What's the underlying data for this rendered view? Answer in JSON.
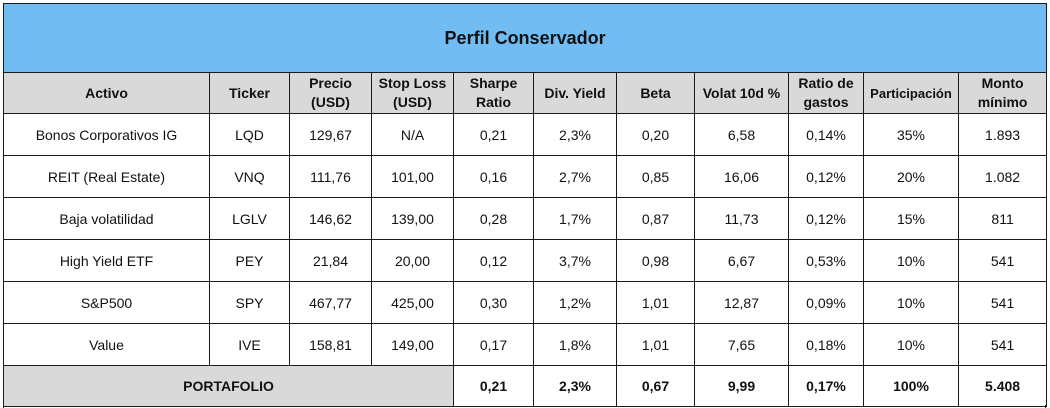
{
  "title": "Perfil Conservador",
  "headers": [
    "Activo",
    "Ticker",
    "Precio (USD)",
    "Stop Loss (USD)",
    "Sharpe Ratio",
    "Div. Yield",
    "Beta",
    "Volat 10d %",
    "Ratio de gastos",
    "Participación",
    "Monto mínimo"
  ],
  "rows": [
    [
      "Bonos Corporativos IG",
      "LQD",
      "129,67",
      "N/A",
      "0,21",
      "2,3%",
      "0,20",
      "6,58",
      "0,14%",
      "35%",
      "1.893"
    ],
    [
      "REIT (Real Estate)",
      "VNQ",
      "111,76",
      "101,00",
      "0,16",
      "2,7%",
      "0,85",
      "16,06",
      "0,12%",
      "20%",
      "1.082"
    ],
    [
      "Baja volatilidad",
      "LGLV",
      "146,62",
      "139,00",
      "0,28",
      "1,7%",
      "0,87",
      "11,73",
      "0,12%",
      "15%",
      "811"
    ],
    [
      "High Yield ETF",
      "PEY",
      "21,84",
      "20,00",
      "0,12",
      "3,7%",
      "0,98",
      "6,67",
      "0,53%",
      "10%",
      "541"
    ],
    [
      "S&P500",
      "SPY",
      "467,77",
      "425,00",
      "0,30",
      "1,2%",
      "1,01",
      "12,87",
      "0,09%",
      "10%",
      "541"
    ],
    [
      "Value",
      "IVE",
      "158,81",
      "149,00",
      "0,17",
      "1,8%",
      "1,01",
      "7,65",
      "0,18%",
      "10%",
      "541"
    ]
  ],
  "total": {
    "label": "PORTAFOLIO",
    "sharpe": "0,21",
    "div_yield": "2,3%",
    "beta": "0,67",
    "volat": "9,99",
    "ratio_gastos": "0,17%",
    "participacion": "100%",
    "monto": "5.408"
  },
  "colors": {
    "title_background": "#71bdf3",
    "header_background": "#d9d9d9",
    "border": "#1a1a1a"
  }
}
